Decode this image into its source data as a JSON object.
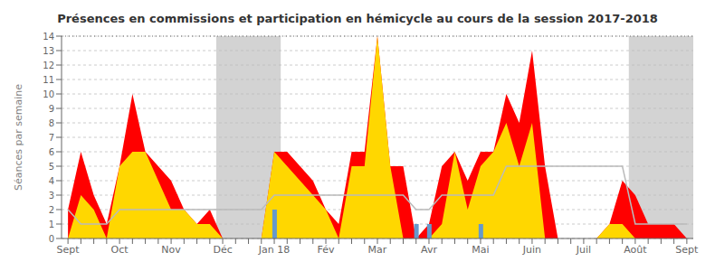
{
  "chart_data": {
    "type": "area",
    "title": "Présences en commissions et participation en hémicycle au cours de la session 2017-2018",
    "ylabel": "Séances par semaine",
    "categories": [
      "Sept",
      null,
      null,
      null,
      "Oct",
      null,
      null,
      null,
      "Nov",
      null,
      null,
      null,
      "Déc",
      null,
      null,
      null,
      "Jan 18",
      null,
      null,
      null,
      "Fév",
      null,
      null,
      null,
      "Mar",
      null,
      null,
      null,
      "Avr",
      null,
      null,
      null,
      "Mai",
      null,
      null,
      null,
      "Juin",
      null,
      null,
      null,
      "Juil",
      null,
      null,
      null,
      "Août",
      null,
      null,
      null,
      "Sept"
    ],
    "series": [
      {
        "type": "area",
        "color": "#FF0000",
        "values": [
          2,
          6,
          3,
          1,
          5,
          10,
          6,
          5,
          4,
          2,
          1,
          2,
          0,
          0,
          0,
          0,
          6,
          6,
          5,
          4,
          2,
          1,
          6,
          6,
          14,
          5,
          5,
          0,
          1,
          5,
          6,
          4,
          6,
          6,
          10,
          8,
          13,
          5,
          0,
          0,
          0,
          0,
          1,
          4,
          3,
          1,
          1,
          1,
          0
        ]
      },
      {
        "type": "area",
        "color": "#FFD700",
        "values": [
          0,
          3,
          2,
          0,
          5,
          6,
          6,
          4,
          2,
          2,
          1,
          1,
          0,
          0,
          0,
          0,
          6,
          5,
          4,
          3,
          2,
          0,
          5,
          5,
          14,
          5,
          0,
          0,
          0,
          1,
          6,
          2,
          5,
          6,
          8,
          5,
          8,
          0,
          0,
          0,
          0,
          0,
          1,
          1,
          0,
          0,
          0,
          0,
          0
        ]
      },
      {
        "type": "line",
        "color": "#BBBBBB",
        "values": [
          2,
          1,
          1,
          1,
          2,
          2,
          2,
          2,
          2,
          2,
          2,
          2,
          2,
          2,
          2,
          2,
          3,
          3,
          3,
          3,
          3,
          3,
          3,
          3,
          3,
          3,
          3,
          2,
          2,
          3,
          3,
          3,
          3,
          3,
          5,
          5,
          5,
          5,
          5,
          5,
          5,
          5,
          5,
          5,
          1,
          1,
          1,
          1,
          1
        ]
      },
      {
        "type": "bar",
        "color": "#6699CC",
        "values": [
          null,
          null,
          null,
          null,
          null,
          null,
          null,
          null,
          null,
          null,
          null,
          null,
          null,
          null,
          null,
          null,
          2,
          null,
          null,
          null,
          null,
          null,
          null,
          null,
          null,
          null,
          null,
          1,
          1,
          null,
          null,
          null,
          1,
          null,
          null,
          null,
          null,
          null,
          null,
          null,
          null,
          null,
          null,
          null,
          null,
          null,
          null,
          null,
          null
        ]
      }
    ],
    "bands": [
      {
        "from": 12,
        "to": 16,
        "color": "#BBBBBB"
      },
      {
        "from": 44,
        "to": 48,
        "color": "#BBBBBB"
      }
    ],
    "reference_lines": [
      {
        "y": 14,
        "color": "#666666",
        "line_style": "dotted"
      }
    ],
    "ylim": [
      0,
      14
    ],
    "yticks": [
      0,
      1,
      2,
      3,
      4,
      5,
      6,
      7,
      8,
      9,
      10,
      11,
      12,
      13,
      14
    ],
    "grid": true
  }
}
